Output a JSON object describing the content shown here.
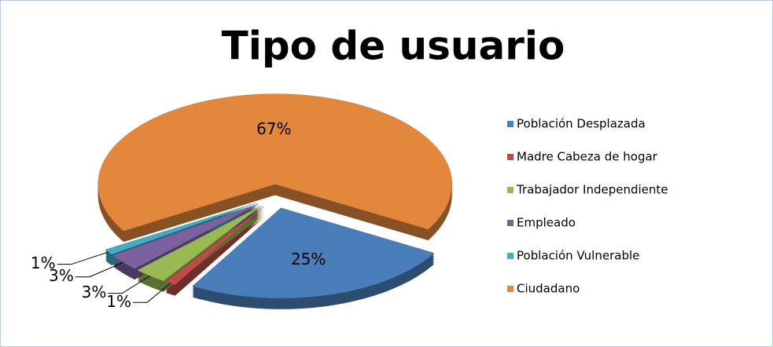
{
  "chart_data": {
    "type": "pie",
    "title": "Tipo de usuario",
    "categories": [
      "Población Desplazada",
      "Madre Cabeza de hogar",
      "Trabajador Independiente",
      "Empleado",
      "Población Vulnerable",
      "Ciudadano"
    ],
    "values": [
      25,
      1,
      3,
      3,
      1,
      67
    ],
    "value_labels": [
      "25%",
      "1%",
      "3%",
      "3%",
      "1%",
      "67%"
    ],
    "colors": [
      "#4a7ebb",
      "#be4b48",
      "#98b954",
      "#7d60a0",
      "#46aac5",
      "#e2873c"
    ],
    "legend": "right"
  }
}
